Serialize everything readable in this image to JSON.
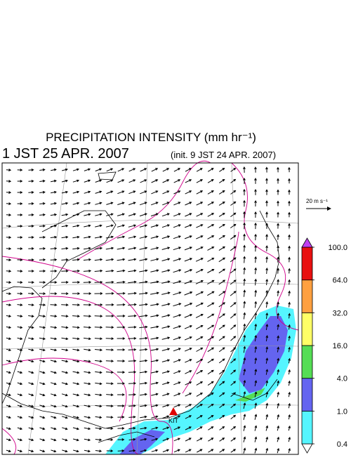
{
  "header": {
    "title": "PRECIPITATION INTENSITY (mm hr⁻¹)",
    "valid_time": "1 JST 25 APR. 2007",
    "init_time": "(init. 9 JST 24 APR. 2007)"
  },
  "map": {
    "station_label": "KIT"
  },
  "vector_legend": {
    "label": "20 m s⁻¹"
  },
  "colorbar": {
    "levels": [
      {
        "value": 0.4,
        "label": "0.4"
      },
      {
        "value": 1,
        "label": "1.0"
      },
      {
        "value": 4,
        "label": "4.0"
      },
      {
        "value": 16,
        "label": "16.0"
      },
      {
        "value": 32,
        "label": "32.0"
      },
      {
        "value": 64,
        "label": "64.0"
      },
      {
        "value": 100,
        "label": "100.0"
      }
    ],
    "colors": [
      "#ffffff",
      "#55f5ff",
      "#6464f0",
      "#55dd55",
      "#ffff66",
      "#ffa040",
      "#e81010",
      "#c040f0"
    ]
  }
}
